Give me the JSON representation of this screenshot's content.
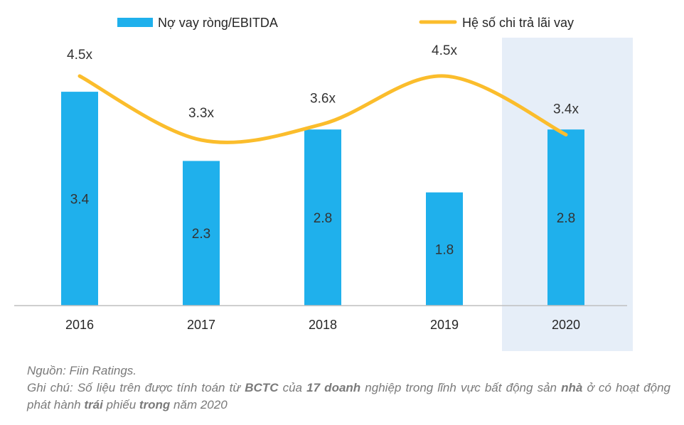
{
  "chart_data": {
    "type": "bar+line",
    "categories": [
      "2016",
      "2017",
      "2018",
      "2019",
      "2020"
    ],
    "series": [
      {
        "name": "Nợ vay ròng/EBITDA",
        "type": "bar",
        "values": [
          3.4,
          2.3,
          2.8,
          1.8,
          2.8
        ],
        "labels": [
          "3.4",
          "2.3",
          "2.8",
          "1.8",
          "2.8"
        ],
        "color": "#1fb0ec"
      },
      {
        "name": "Hệ số chi trả lãi vay",
        "type": "line",
        "smooth": true,
        "values": [
          4.5,
          3.3,
          3.6,
          4.5,
          3.4
        ],
        "labels": [
          "4.5x",
          "3.3x",
          "3.6x",
          "4.5x",
          "3.4x"
        ],
        "color": "#fbbd2c"
      }
    ],
    "highlight_category": "2020",
    "highlight_color": "#e6eef8",
    "legend": "top",
    "grid": false
  },
  "footnote": {
    "source": "Nguồn: Fiin Ratings.",
    "note_parts": [
      {
        "t": "Ghi chú: Số liệu trên được tính toán từ ",
        "b": false
      },
      {
        "t": "BCTC",
        "b": true
      },
      {
        "t": " của ",
        "b": false
      },
      {
        "t": "17 doanh",
        "b": true
      },
      {
        "t": " nghiệp trong lĩnh vực bất động sản ",
        "b": false
      },
      {
        "t": "nhà",
        "b": true
      },
      {
        "t": " ở có hoạt động phát hành ",
        "b": false
      },
      {
        "t": "trái",
        "b": true
      },
      {
        "t": " phiếu ",
        "b": false
      },
      {
        "t": "trong",
        "b": true
      },
      {
        "t": " năm 2020",
        "b": false
      }
    ]
  }
}
